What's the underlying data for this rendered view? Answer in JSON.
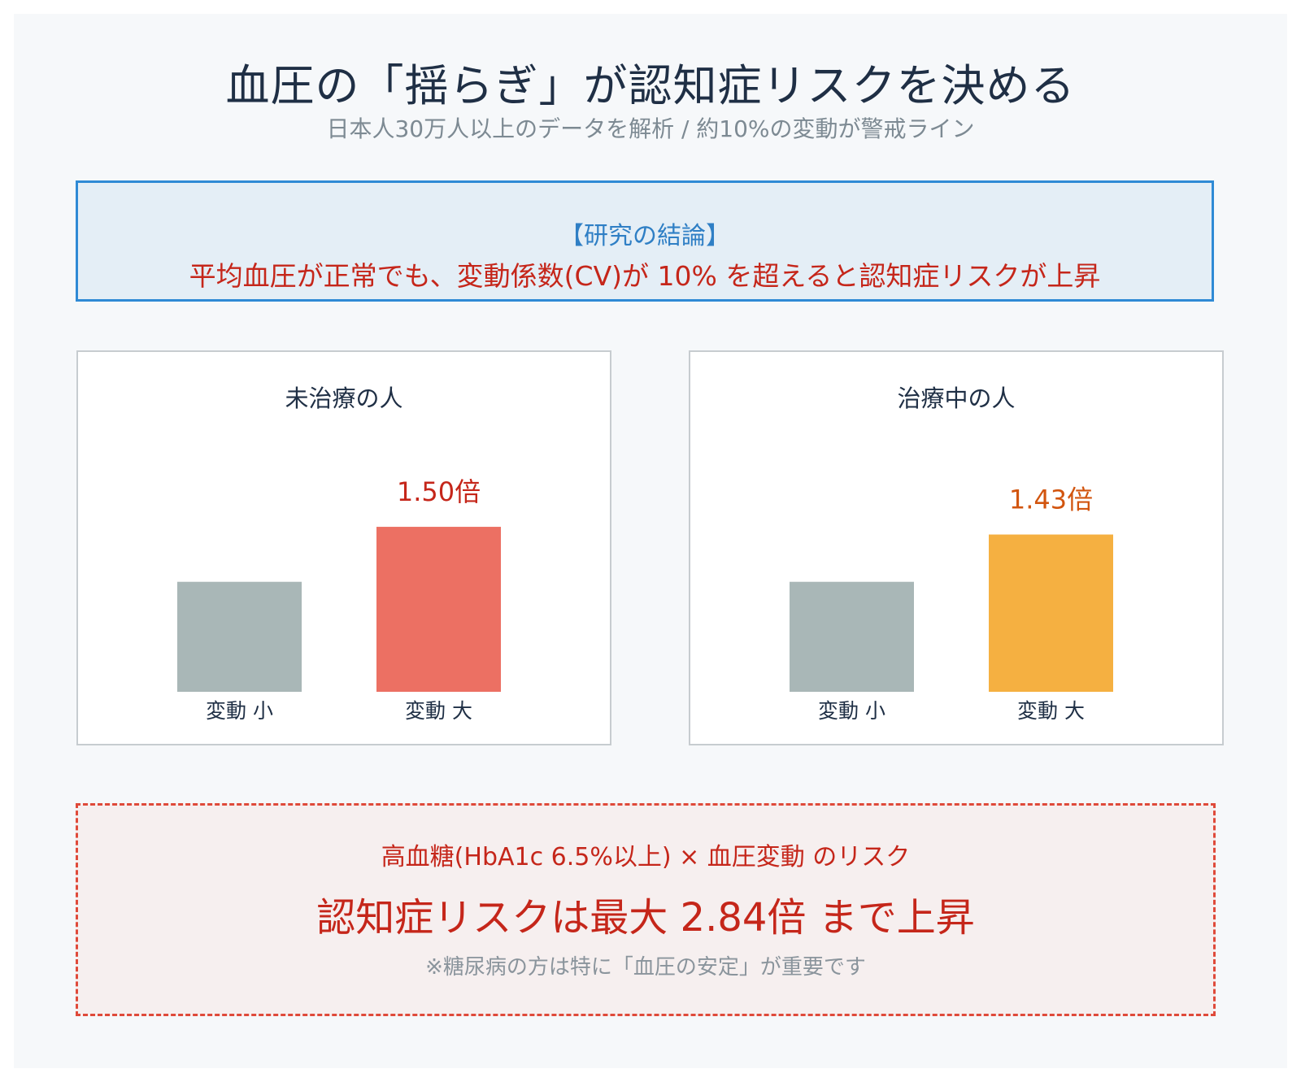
{
  "header": {
    "title": "血圧の「揺らぎ」が認知症リスクを決める",
    "subtitle": "日本人30万人以上のデータを解析 / 約10%の変動が警戒ライン"
  },
  "conclusion": {
    "heading": "【研究の結論】",
    "text": "平均血圧が正常でも、変動係数(CV)が 10% を超えると認知症リスクが上昇"
  },
  "colors": {
    "baseline_bar": "#a9b7b7",
    "untreated_bar": "#ec7063",
    "untreated_label": "#c5261a",
    "treated_bar": "#f5b041",
    "treated_label": "#d2550f"
  },
  "chart_data": [
    {
      "type": "bar",
      "title": "未治療の人",
      "categories": [
        "変動 小",
        "変動 大"
      ],
      "values": [
        1.0,
        1.5
      ],
      "data_labels": [
        "",
        "1.50倍"
      ],
      "ylim": [
        0,
        1.7
      ]
    },
    {
      "type": "bar",
      "title": "治療中の人",
      "categories": [
        "変動 小",
        "変動 大"
      ],
      "values": [
        1.0,
        1.43
      ],
      "data_labels": [
        "",
        "1.43倍"
      ],
      "ylim": [
        0,
        1.7
      ]
    }
  ],
  "risk_box": {
    "heading": "高血糖(HbA1c 6.5%以上) × 血圧変動 のリスク",
    "main": "認知症リスクは最大 2.84倍 まで上昇",
    "note": "※糖尿病の方は特に「血圧の安定」が重要です"
  }
}
